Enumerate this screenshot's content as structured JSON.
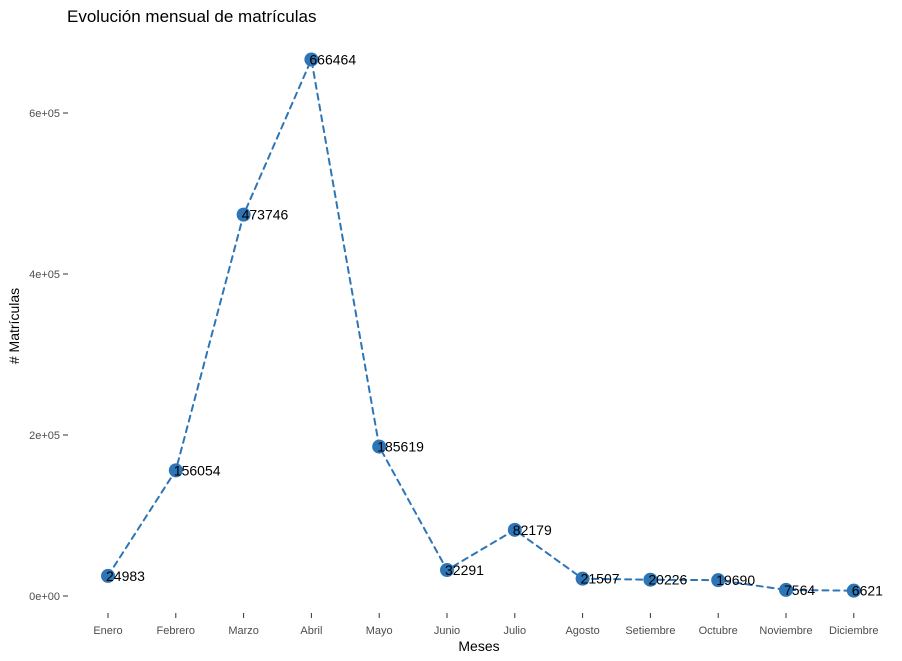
{
  "chart_data": {
    "type": "line",
    "title": "Evolución mensual de matrículas",
    "xlabel": "Meses",
    "ylabel": "# Matrículas",
    "categories": [
      "Enero",
      "Febrero",
      "Marzo",
      "Abril",
      "Mayo",
      "Junio",
      "Julio",
      "Agosto",
      "Setiembre",
      "Octubre",
      "Noviembre",
      "Diciembre"
    ],
    "series": [
      {
        "values": [
          24983,
          156054,
          473746,
          666464,
          185619,
          32291,
          82179,
          21507,
          20226,
          19690,
          7564,
          6621
        ],
        "data_labels": [
          "24983",
          "156054",
          "473746",
          "666464",
          "185619",
          "32291",
          "82179",
          "21507",
          "20226",
          "19690",
          "7564",
          "6621"
        ]
      }
    ],
    "ylim": [
      0,
      666464
    ],
    "y_ticks": [
      0,
      200000,
      400000,
      600000
    ],
    "y_tick_labels": [
      "0e+00",
      "2e+05",
      "4e+05",
      "6e+05"
    ],
    "line_style": "dashed",
    "marker": "circle",
    "grid": false,
    "legend": "none",
    "colors": {
      "series": "#2e75b6",
      "text": "#000000",
      "tick_text": "#4d4d4d",
      "tick_line": "#333333"
    }
  }
}
